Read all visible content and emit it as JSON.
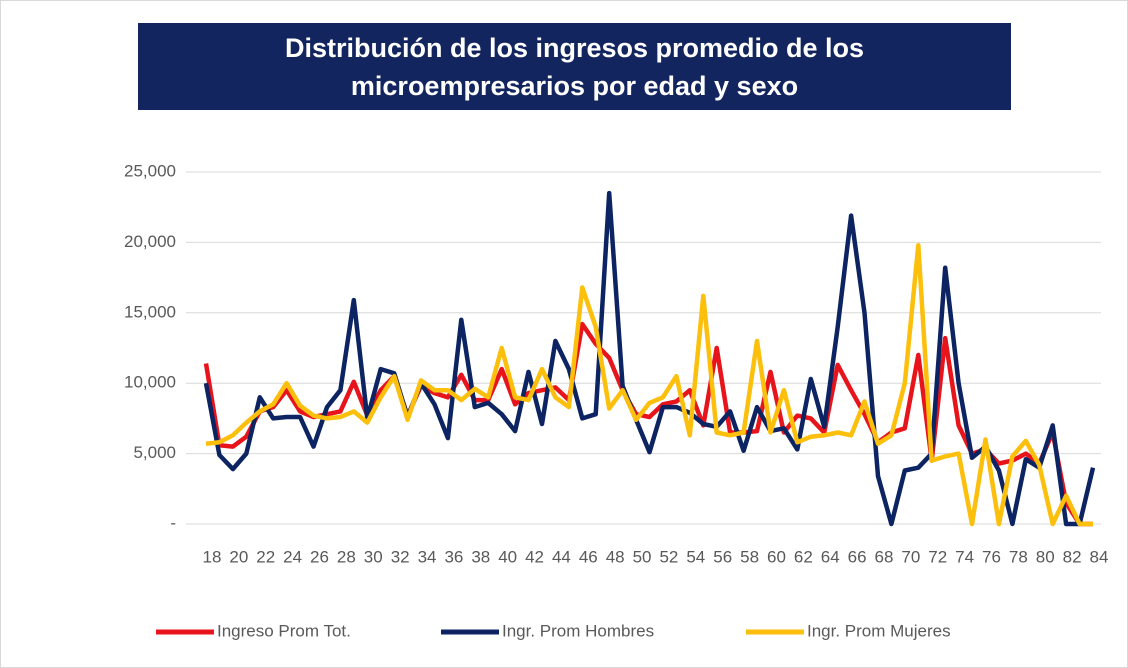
{
  "chart_data": {
    "type": "line",
    "title": "Distribución de los ingresos promedio de los microempresarios por edad y sexo",
    "categories": [
      "18",
      null,
      "20",
      null,
      "22",
      null,
      "24",
      null,
      "26",
      null,
      "28",
      null,
      "30",
      null,
      "32",
      null,
      "34",
      null,
      "36",
      null,
      "38",
      null,
      "40",
      null,
      "42",
      null,
      "44",
      null,
      "46",
      null,
      "48",
      null,
      "50",
      null,
      "52",
      null,
      "54",
      null,
      "56",
      null,
      "58",
      null,
      "60",
      null,
      "62",
      null,
      "64",
      null,
      "66",
      null,
      "68",
      null,
      "70",
      null,
      "72",
      null,
      "74",
      null,
      "76",
      null,
      "78",
      null,
      "80",
      null,
      "82",
      null,
      "84"
    ],
    "series": [
      {
        "name": "Ingreso Prom Tot.",
        "color": "#e8141c",
        "values": [
          11400,
          5600,
          5500,
          6200,
          8000,
          8300,
          9500,
          8000,
          7600,
          7800,
          8000,
          10100,
          7700,
          9500,
          10500,
          7700,
          9800,
          9300,
          9000,
          10600,
          8800,
          8800,
          11000,
          8500,
          9300,
          9500,
          9700,
          8800,
          14200,
          12800,
          11800,
          9500,
          7800,
          7600,
          8500,
          8700,
          9500,
          7000,
          12500,
          6500,
          6500,
          6600,
          10800,
          6500,
          7700,
          7500,
          6500,
          11300,
          9500,
          7800,
          5800,
          6500,
          6800,
          12000,
          4500,
          13200,
          7000,
          5000,
          5300,
          4300,
          4500,
          5000,
          4300,
          6500,
          1500,
          0,
          0
        ]
      },
      {
        "name": "Ingr. Prom Hombres",
        "color": "#0d2463",
        "values": [
          10000,
          4900,
          3900,
          5000,
          9000,
          7500,
          7600,
          7600,
          5500,
          8300,
          9500,
          15900,
          7500,
          11000,
          10700,
          7600,
          10000,
          8500,
          6100,
          14500,
          8300,
          8600,
          7800,
          6600,
          10800,
          7100,
          13000,
          11000,
          7500,
          7800,
          23500,
          9800,
          7400,
          5100,
          8300,
          8300,
          7900,
          7100,
          6900,
          8000,
          5200,
          8300,
          6600,
          6800,
          5300,
          10300,
          6900,
          14000,
          21900,
          15000,
          3400,
          0,
          3800,
          4000,
          5000,
          18200,
          10000,
          4700,
          5500,
          3800,
          0,
          4600,
          4000,
          7000,
          0,
          0,
          4000
        ]
      },
      {
        "name": "Ingr. Prom Mujeres",
        "color": "#fcbf0c",
        "values": [
          5700,
          5800,
          6300,
          7200,
          8000,
          8500,
          10000,
          8400,
          7700,
          7500,
          7600,
          8000,
          7200,
          9000,
          10500,
          7400,
          10200,
          9500,
          9500,
          8800,
          9600,
          9000,
          12500,
          9000,
          8800,
          11000,
          9000,
          8300,
          16800,
          14000,
          8200,
          9500,
          7400,
          8600,
          9000,
          10500,
          6300,
          16200,
          6500,
          6300,
          6500,
          13000,
          6500,
          9500,
          5800,
          6200,
          6300,
          6500,
          6300,
          8700,
          5700,
          6300,
          10000,
          19800,
          4500,
          4800,
          5000,
          0,
          6000,
          0,
          4800,
          5900,
          4200,
          0,
          2000,
          0,
          0
        ]
      }
    ],
    "ylim": [
      0,
      25000
    ],
    "yticks": [
      {
        "value": 0,
        "label": "-"
      },
      {
        "value": 5000,
        "label": "5,000"
      },
      {
        "value": 10000,
        "label": "10,000"
      },
      {
        "value": 15000,
        "label": "15,000"
      },
      {
        "value": 20000,
        "label": "20,000"
      },
      {
        "value": 25000,
        "label": "25,000"
      }
    ],
    "grid": true,
    "legend": "bottom"
  }
}
